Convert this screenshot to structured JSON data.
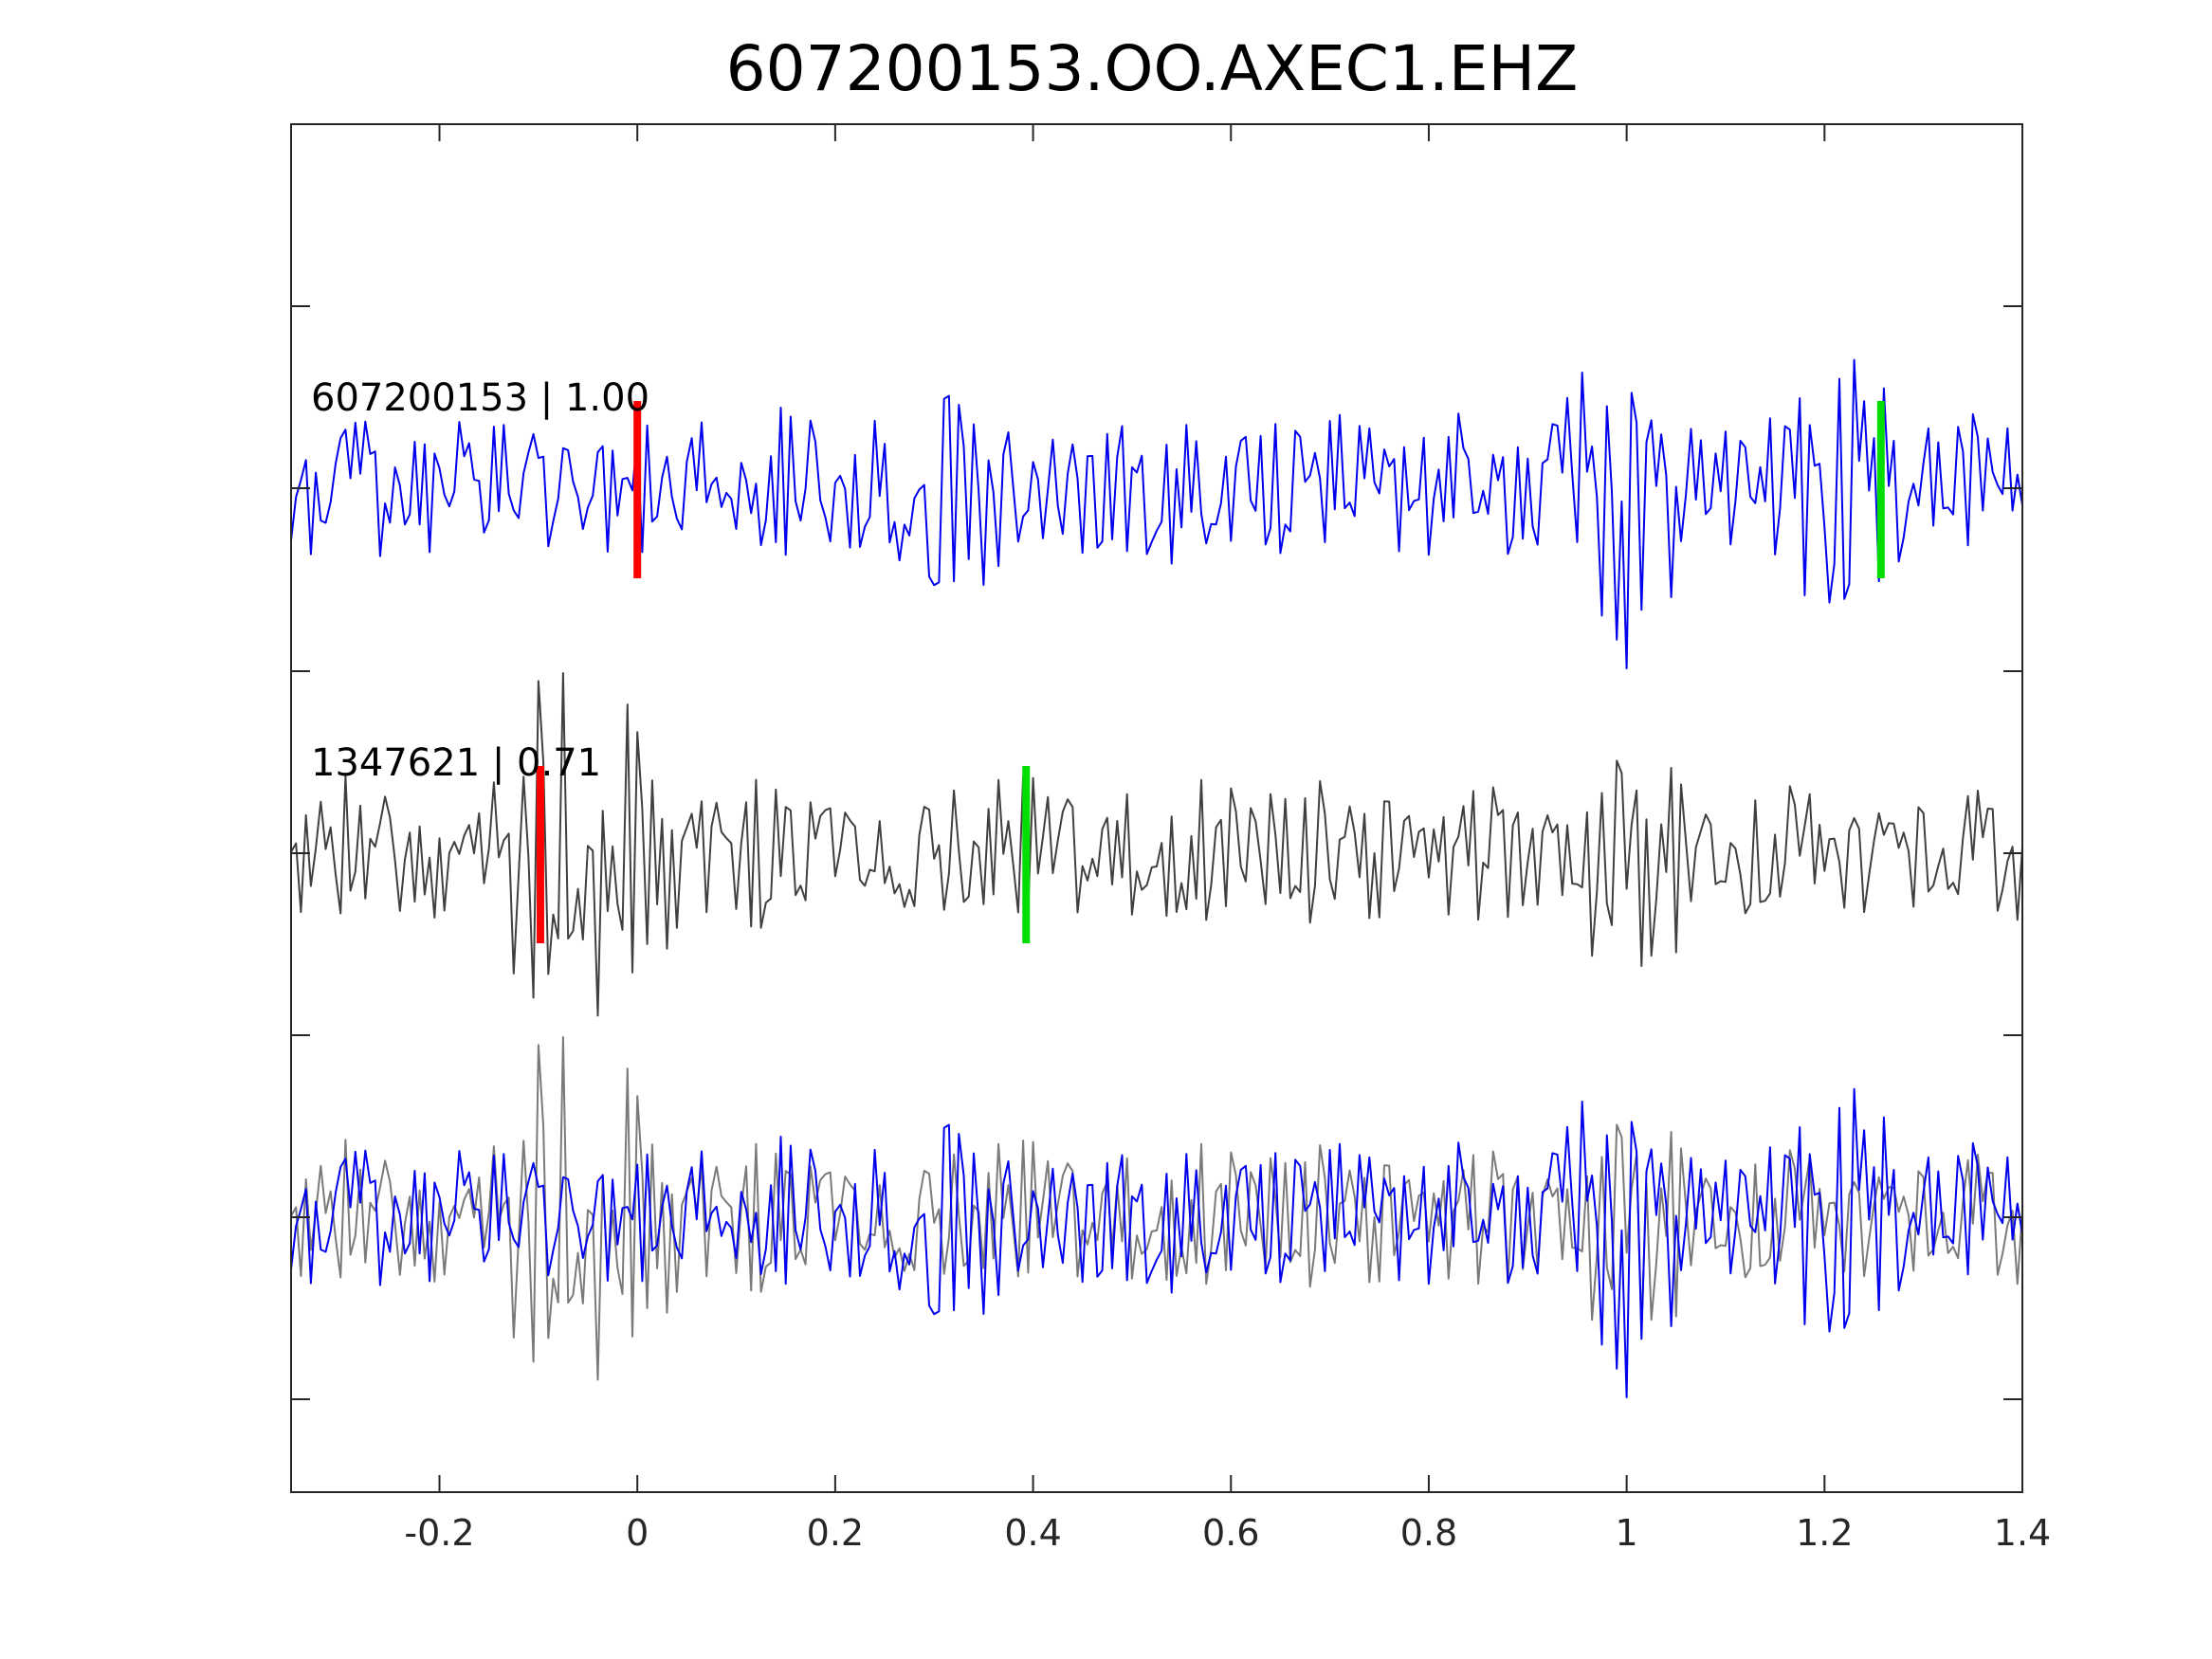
{
  "chart_data": {
    "type": "line",
    "title": "607200153.OO.AXEC1.EHZ",
    "xlabel": "",
    "ylabel": "",
    "xlim": [
      -0.35,
      1.4
    ],
    "x_ticks": [
      -0.2,
      0,
      0.2,
      0.4,
      0.6,
      0.8,
      1,
      1.2,
      1.4
    ],
    "x_tick_labels": [
      "-0.2",
      "0",
      "0.2",
      "0.4",
      "0.6",
      "0.8",
      "1",
      "1.2",
      "1.4"
    ],
    "y_tick_count": 7,
    "y_tick_labels_shown": false,
    "grid": false,
    "sample_interval": 0.005,
    "colors": {
      "master": "#0000ee",
      "neighbor": "#404040",
      "overlay_neighbor": "#7a7a7a",
      "p_pick": "#ff0000",
      "s_pick": "#00dd00"
    },
    "traces": [
      {
        "label": "607200153 | 1.00",
        "event_id": "607200153",
        "correlation": "1.00",
        "p_pick_time": 0.0,
        "s_pick_time": 1.257
      },
      {
        "label": "1347621 | 0.71",
        "event_id": "1347621",
        "correlation": "0.71",
        "p_pick_time": -0.098,
        "s_pick_time": 0.393
      }
    ],
    "overlay": {
      "series": [
        "607200153",
        "1347621"
      ]
    }
  }
}
